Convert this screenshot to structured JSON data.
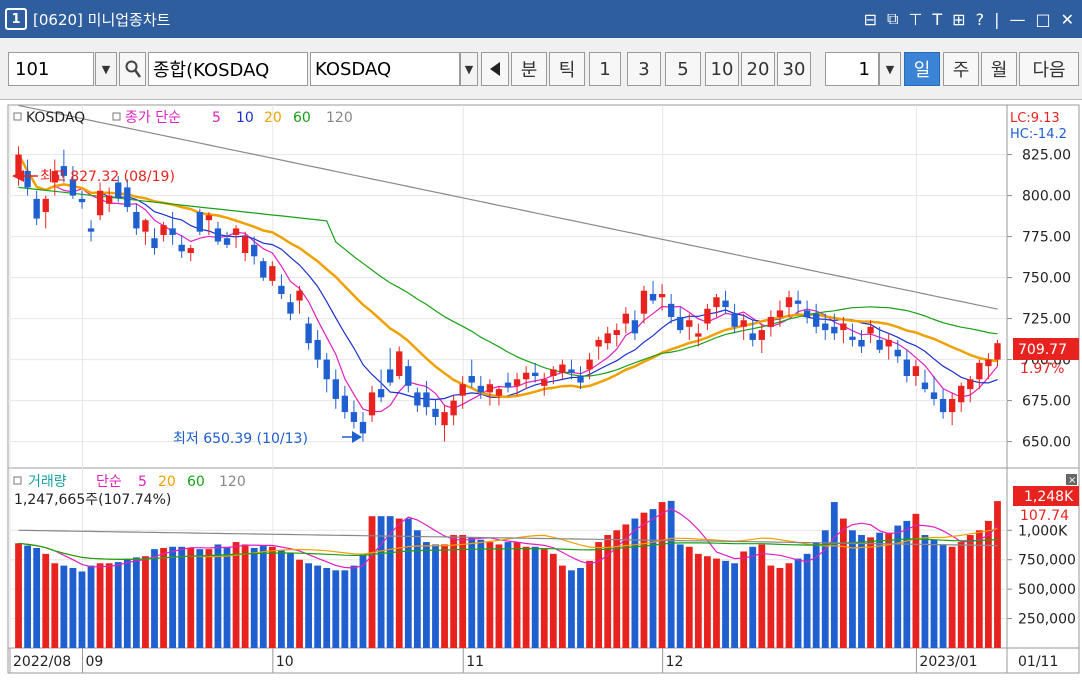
{
  "window": {
    "badge": "1",
    "title": "[0620] 미니업종차트",
    "controls": [
      "⊟",
      "⧉",
      "⊤",
      "T",
      "⊞",
      "?",
      "|",
      "—",
      "□",
      "✕"
    ]
  },
  "toolbar": {
    "code": "101",
    "search_icon": "search-icon",
    "category": "종합(KOSDAQ",
    "market": "KOSDAQ",
    "minute_label": "분",
    "tick_label": "틱",
    "intervals": [
      "1",
      "3",
      "5",
      "10",
      "20",
      "30"
    ],
    "count_value": "1",
    "day_label": "일",
    "week_label": "주",
    "month_label": "월",
    "next_label": "다음",
    "colors": {
      "selected": "#3a83d6"
    }
  },
  "chart": {
    "price_legend": {
      "name": "KOSDAQ",
      "ma_label": "종가 단순",
      "periods": [
        "5",
        "10",
        "20",
        "60",
        "120"
      ],
      "colors": [
        "#e020c0",
        "#1a2fd0",
        "#f0a000",
        "#18a018",
        "#888888"
      ]
    },
    "lc": "LC:9.13",
    "hc": "HC:-14.2",
    "high_label": "최고 827.32 (08/19)",
    "low_label": "최저 650.39 (10/13)",
    "current_price": "709.77",
    "change_pct": "1.97%",
    "price_ticks": [
      "825.00",
      "800.00",
      "775.00",
      "750.00",
      "725.00",
      "700.00",
      "675.00",
      "650.00"
    ],
    "volume_legend": {
      "name": "거래량",
      "ma_label": "단순",
      "periods": [
        "5",
        "20",
        "60",
        "120"
      ],
      "info": "1,247,665주(107.74%)"
    },
    "current_volume": "1,248K",
    "volume_pct": "107.74",
    "volume_ticks": [
      "1,000K",
      "750,000",
      "500,000",
      "250,000"
    ],
    "x_labels": [
      "2022/08",
      "09",
      "10",
      "11",
      "12",
      "2023/01"
    ],
    "last_date": "01/11",
    "colors": {
      "up": "#e8231f",
      "down": "#1f5fd0"
    }
  },
  "chart_data": {
    "type": "candlestick",
    "price_range": [
      640,
      840
    ],
    "volume_range": [
      0,
      1300000
    ],
    "candles": [
      [
        812,
        830,
        806,
        825
      ],
      [
        815,
        822,
        800,
        805
      ],
      [
        798,
        803,
        782,
        786
      ],
      [
        790,
        800,
        780,
        798
      ],
      [
        808,
        822,
        800,
        815
      ],
      [
        818,
        828,
        808,
        812
      ],
      [
        810,
        818,
        798,
        800
      ],
      [
        798,
        803,
        792,
        796
      ],
      [
        780,
        785,
        772,
        778
      ],
      [
        788,
        808,
        785,
        803
      ],
      [
        795,
        805,
        790,
        800
      ],
      [
        808,
        812,
        796,
        799
      ],
      [
        805,
        810,
        790,
        793
      ],
      [
        790,
        795,
        776,
        780
      ],
      [
        778,
        786,
        770,
        785
      ],
      [
        774,
        780,
        764,
        768
      ],
      [
        776,
        784,
        772,
        782
      ],
      [
        780,
        790,
        770,
        776
      ],
      [
        770,
        776,
        762,
        766
      ],
      [
        765,
        770,
        760,
        768
      ],
      [
        790,
        792,
        776,
        778
      ],
      [
        785,
        790,
        776,
        788
      ],
      [
        780,
        784,
        770,
        772
      ],
      [
        774,
        778,
        768,
        770
      ],
      [
        776,
        782,
        768,
        780
      ],
      [
        765,
        778,
        760,
        775
      ],
      [
        770,
        775,
        758,
        763
      ],
      [
        760,
        762,
        748,
        750
      ],
      [
        748,
        760,
        745,
        757
      ],
      [
        745,
        752,
        737,
        740
      ],
      [
        735,
        740,
        724,
        728
      ],
      [
        736,
        745,
        728,
        742
      ],
      [
        722,
        726,
        706,
        710
      ],
      [
        712,
        718,
        695,
        700
      ],
      [
        700,
        704,
        680,
        688
      ],
      [
        688,
        694,
        670,
        676
      ],
      [
        678,
        684,
        664,
        668
      ],
      [
        668,
        675,
        658,
        662
      ],
      [
        662,
        668,
        650,
        655
      ],
      [
        666,
        684,
        662,
        680
      ],
      [
        682,
        694,
        674,
        677
      ],
      [
        694,
        707,
        684,
        686
      ],
      [
        690,
        708,
        688,
        705
      ],
      [
        696,
        700,
        680,
        684
      ],
      [
        680,
        683,
        668,
        672
      ],
      [
        680,
        687,
        666,
        671
      ],
      [
        670,
        676,
        660,
        665
      ],
      [
        660,
        672,
        650,
        668
      ],
      [
        666,
        678,
        660,
        675
      ],
      [
        678,
        690,
        670,
        685
      ],
      [
        690,
        700,
        683,
        686
      ],
      [
        684,
        690,
        676,
        680
      ],
      [
        680,
        688,
        672,
        685
      ],
      [
        678,
        684,
        672,
        682
      ],
      [
        686,
        692,
        680,
        683
      ],
      [
        684,
        692,
        678,
        688
      ],
      [
        688,
        696,
        682,
        692
      ],
      [
        692,
        698,
        686,
        690
      ],
      [
        684,
        692,
        678,
        688
      ],
      [
        690,
        696,
        685,
        694
      ],
      [
        692,
        700,
        688,
        697
      ],
      [
        694,
        700,
        688,
        692
      ],
      [
        690,
        696,
        682,
        686
      ],
      [
        694,
        704,
        688,
        700
      ],
      [
        708,
        714,
        700,
        712
      ],
      [
        710,
        720,
        706,
        716
      ],
      [
        715,
        722,
        708,
        718
      ],
      [
        722,
        732,
        716,
        728
      ],
      [
        724,
        730,
        712,
        716
      ],
      [
        728,
        745,
        722,
        742
      ],
      [
        740,
        748,
        734,
        736
      ],
      [
        738,
        746,
        730,
        740
      ],
      [
        734,
        740,
        722,
        726
      ],
      [
        726,
        732,
        716,
        718
      ],
      [
        720,
        728,
        712,
        724
      ],
      [
        714,
        722,
        708,
        716
      ],
      [
        722,
        734,
        718,
        731
      ],
      [
        732,
        740,
        726,
        738
      ],
      [
        736,
        742,
        728,
        732
      ],
      [
        728,
        734,
        716,
        720
      ],
      [
        720,
        728,
        712,
        724
      ],
      [
        716,
        724,
        708,
        712
      ],
      [
        712,
        722,
        704,
        718
      ],
      [
        720,
        730,
        714,
        726
      ],
      [
        726,
        736,
        720,
        730
      ],
      [
        732,
        742,
        726,
        738
      ],
      [
        736,
        742,
        728,
        734
      ],
      [
        730,
        736,
        722,
        726
      ],
      [
        728,
        734,
        716,
        720
      ],
      [
        722,
        728,
        712,
        718
      ],
      [
        720,
        728,
        712,
        716
      ],
      [
        718,
        726,
        710,
        722
      ],
      [
        714,
        722,
        708,
        712
      ],
      [
        712,
        718,
        704,
        708
      ],
      [
        716,
        724,
        710,
        720
      ],
      [
        712,
        720,
        704,
        706
      ],
      [
        708,
        716,
        700,
        712
      ],
      [
        706,
        712,
        698,
        702
      ],
      [
        700,
        706,
        686,
        690
      ],
      [
        690,
        700,
        684,
        696
      ],
      [
        686,
        694,
        680,
        682
      ],
      [
        680,
        690,
        672,
        676
      ],
      [
        676,
        682,
        664,
        668
      ],
      [
        668,
        680,
        660,
        676
      ],
      [
        674,
        686,
        668,
        684
      ],
      [
        682,
        690,
        674,
        688
      ],
      [
        688,
        700,
        682,
        698
      ],
      [
        696,
        704,
        688,
        700
      ],
      [
        700,
        712,
        696,
        710
      ]
    ],
    "volumes": [
      890,
      870,
      850,
      800,
      720,
      700,
      680,
      650,
      700,
      720,
      720,
      730,
      760,
      770,
      780,
      840,
      850,
      860,
      860,
      850,
      840,
      840,
      880,
      860,
      900,
      880,
      850,
      870,
      860,
      830,
      810,
      750,
      720,
      700,
      680,
      660,
      660,
      700,
      800,
      1120,
      1120,
      1120,
      1100,
      1100,
      1000,
      900,
      880,
      880,
      960,
      960,
      940,
      920,
      900,
      880,
      900,
      900,
      860,
      860,
      840,
      800,
      700,
      660,
      680,
      740,
      900,
      960,
      1000,
      1050,
      1100,
      1150,
      1180,
      1240,
      1250,
      880,
      860,
      800,
      780,
      760,
      740,
      720,
      820,
      860,
      880,
      700,
      680,
      720,
      760,
      800,
      900,
      1000,
      1240,
      1100,
      1000,
      960,
      940,
      980,
      980,
      1040,
      1080,
      1140,
      960,
      920,
      880,
      860,
      900,
      960,
      1000,
      1080,
      1248
    ]
  }
}
